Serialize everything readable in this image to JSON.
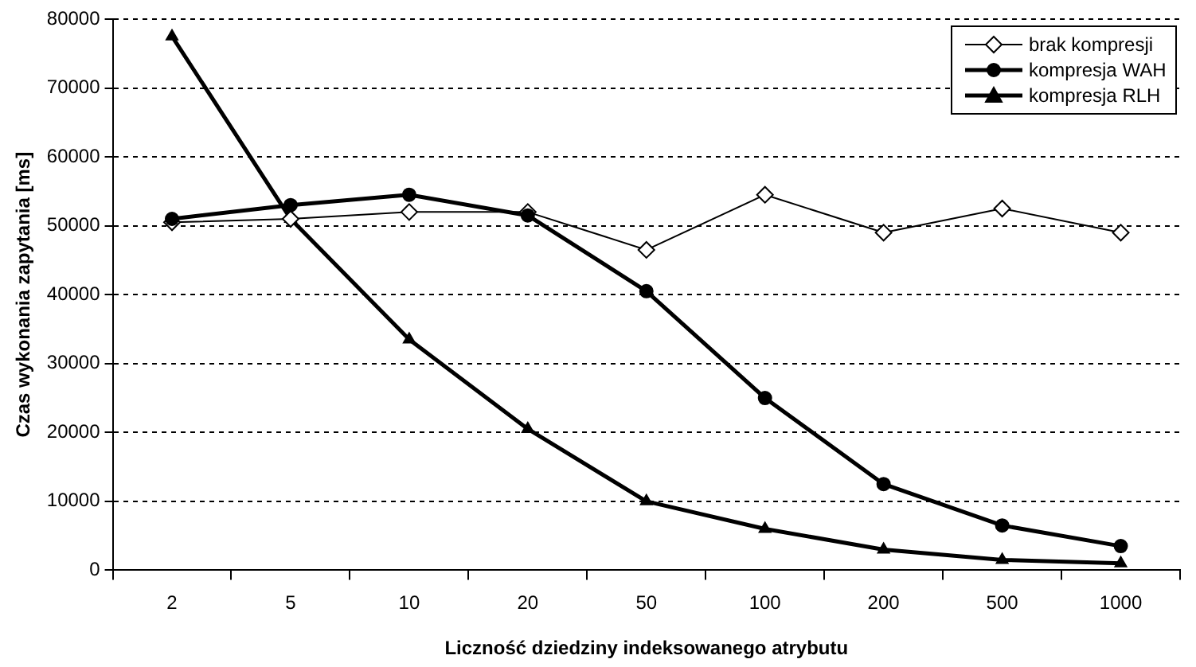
{
  "chart_data": {
    "type": "line",
    "xlabel": "Liczność dziedziny indeksowanego atrybutu",
    "ylabel": "Czas wykonania zapytania [ms]",
    "categories": [
      "2",
      "5",
      "10",
      "20",
      "50",
      "100",
      "200",
      "500",
      "1000"
    ],
    "series": [
      {
        "name": "brak kompresji",
        "color": "#000000",
        "marker": "diamond",
        "values": [
          50500,
          51000,
          52000,
          52000,
          46500,
          54500,
          49000,
          52500,
          49000
        ]
      },
      {
        "name": "kompresja WAH",
        "color": "#000000",
        "marker": "circle",
        "values": [
          51000,
          53000,
          54500,
          51500,
          40500,
          25000,
          12500,
          6500,
          3500
        ]
      },
      {
        "name": "kompresja RLH",
        "color": "#000000",
        "marker": "triangle",
        "values": [
          77500,
          51000,
          33500,
          20500,
          10000,
          6000,
          3000,
          1500,
          1000
        ]
      }
    ],
    "ylim": [
      0,
      80000
    ],
    "yticks": [
      0,
      10000,
      20000,
      30000,
      40000,
      50000,
      60000,
      70000,
      80000
    ],
    "grid": "y",
    "legend": "top right",
    "line_style": "solid"
  }
}
